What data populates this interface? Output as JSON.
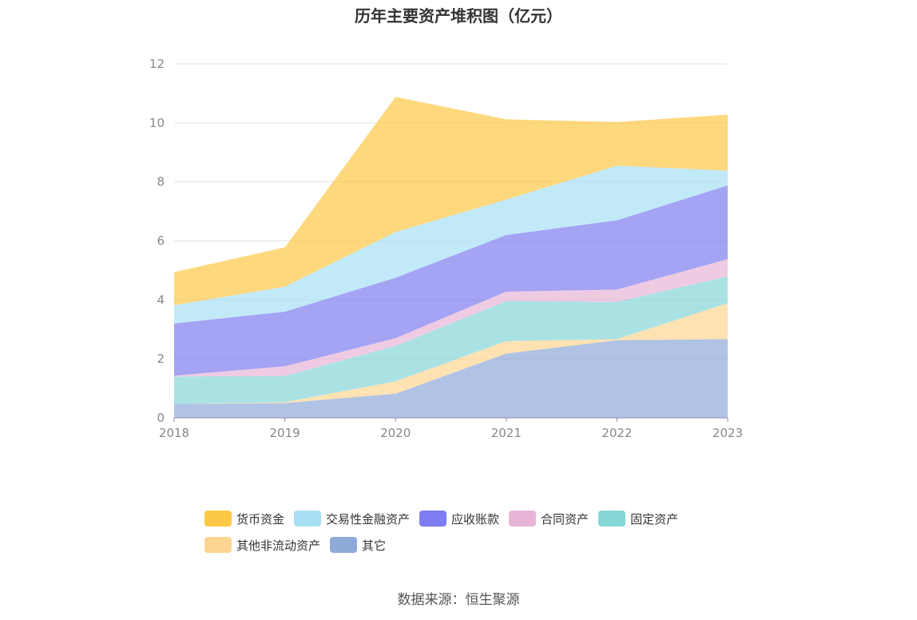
{
  "chart_data": {
    "type": "area",
    "stacked": true,
    "title": "历年主要资产堆积图（亿元）",
    "categories": [
      "2018",
      "2019",
      "2020",
      "2021",
      "2022",
      "2023"
    ],
    "ylim": [
      0,
      12
    ],
    "yticks": [
      0,
      2,
      4,
      6,
      8,
      10,
      12
    ],
    "grid": true,
    "legend_position": "bottom",
    "series": [
      {
        "name": "其它",
        "color": "#8fa9d8",
        "values": [
          0.47,
          0.5,
          0.82,
          2.18,
          2.63,
          2.67
        ]
      },
      {
        "name": "其他非流动资产",
        "color": "#fdd592",
        "values": [
          0.0,
          0.03,
          0.42,
          0.42,
          0.04,
          1.22
        ]
      },
      {
        "name": "固定资产",
        "color": "#86d6d8",
        "values": [
          0.93,
          0.89,
          1.2,
          1.36,
          1.26,
          0.91
        ]
      },
      {
        "name": "合同资产",
        "color": "#e8b5d7",
        "values": [
          0.03,
          0.33,
          0.26,
          0.32,
          0.42,
          0.58
        ]
      },
      {
        "name": "应收账款",
        "color": "#7d7cf0",
        "values": [
          1.77,
          1.85,
          2.05,
          1.92,
          2.35,
          2.5
        ]
      },
      {
        "name": "交易性金融资产",
        "color": "#a8dff5",
        "values": [
          0.62,
          0.85,
          1.55,
          1.2,
          1.85,
          0.5
        ]
      },
      {
        "name": "货币资金",
        "color": "#fdc846",
        "values": [
          1.12,
          1.33,
          4.58,
          2.72,
          1.48,
          1.9
        ]
      }
    ],
    "legend_order": [
      "货币资金",
      "交易性金融资产",
      "应收账款",
      "合同资产",
      "固定资产",
      "其他非流动资产",
      "其它"
    ]
  },
  "source_text": "数据来源：恒生聚源"
}
